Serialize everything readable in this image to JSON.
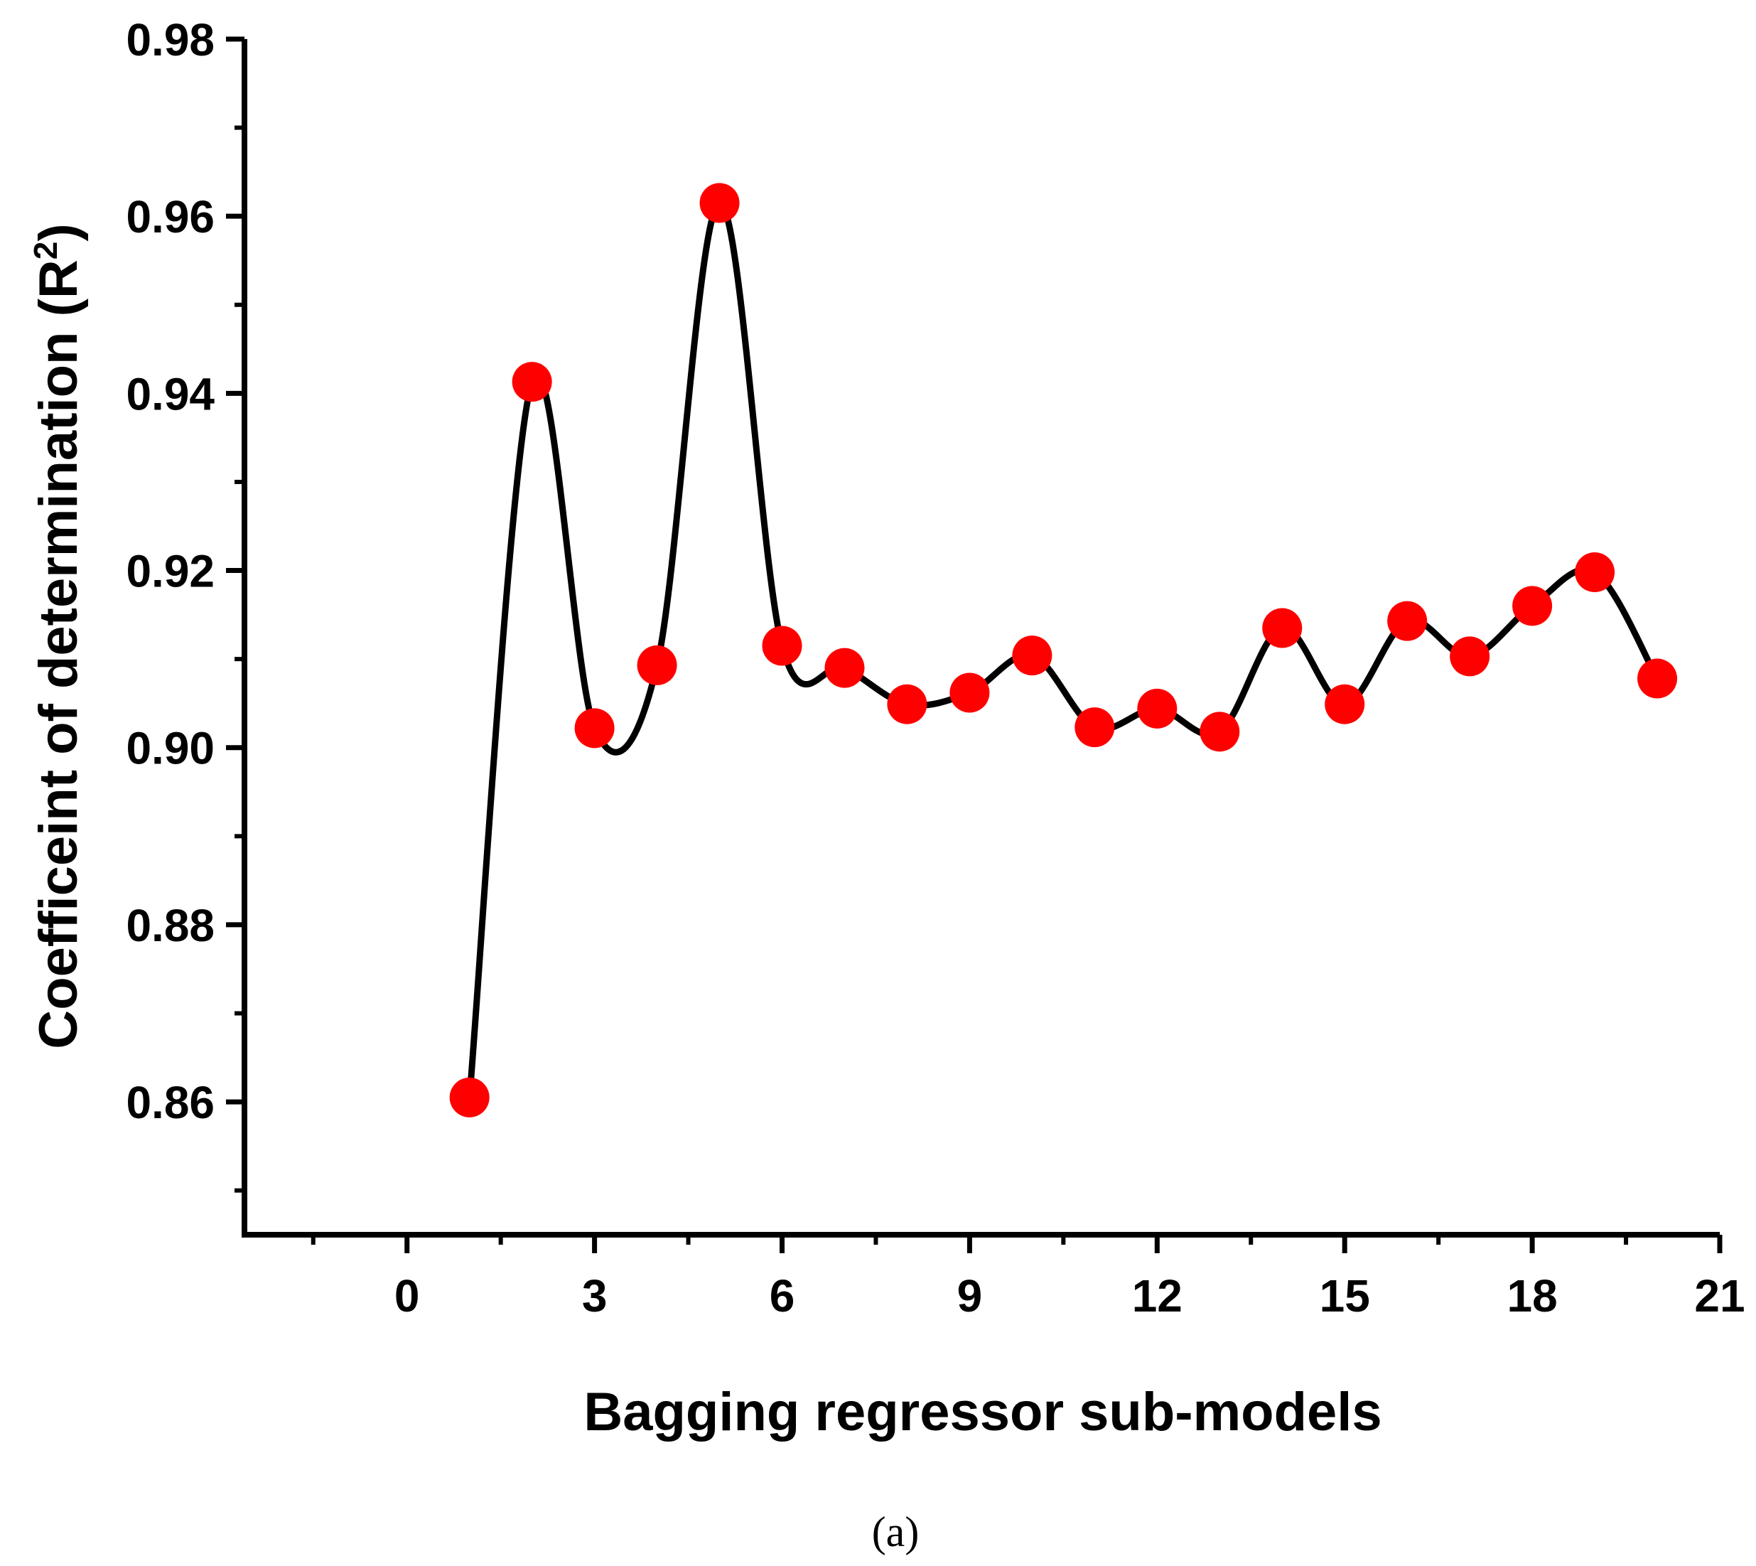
{
  "chart_data": {
    "type": "line",
    "xlabel": "Bagging regressor sub-models",
    "ylabel_main": "Coefficeint of determination (R",
    "ylabel_sup": "2",
    "ylabel_close": ")",
    "caption": "(a)",
    "xlim": [
      -2.6,
      21
    ],
    "ylim": [
      0.845,
      0.98
    ],
    "xticks": [
      0,
      3,
      6,
      9,
      12,
      15,
      18,
      21
    ],
    "xtick_labels": [
      "0",
      "3",
      "6",
      "9",
      "12",
      "15",
      "18",
      "21"
    ],
    "xminor": [
      -1.5,
      1.5,
      4.5,
      7.5,
      10.5,
      13.5,
      16.5,
      19.5
    ],
    "yticks": [
      0.86,
      0.88,
      0.9,
      0.92,
      0.94,
      0.96,
      0.98
    ],
    "ytick_labels": [
      "0.86",
      "0.88",
      "0.90",
      "0.92",
      "0.94",
      "0.96",
      "0.98"
    ],
    "yminor": [
      0.85,
      0.87,
      0.89,
      0.91,
      0.93,
      0.95,
      0.97
    ],
    "grid": false,
    "line_color": "#000000",
    "marker_color": "#ff0000",
    "series": [
      {
        "x": [
          1,
          2,
          3,
          4,
          5,
          6,
          7,
          8,
          9,
          10,
          11,
          12,
          13,
          14,
          15,
          16,
          17,
          18,
          19,
          20
        ],
        "values": [
          0.8605,
          0.9413,
          0.9022,
          0.9093,
          0.9615,
          0.9115,
          0.909,
          0.9049,
          0.9062,
          0.9104,
          0.9023,
          0.9044,
          0.9018,
          0.9135,
          0.9049,
          0.9143,
          0.9103,
          0.916,
          0.9198,
          0.9078
        ]
      }
    ]
  }
}
